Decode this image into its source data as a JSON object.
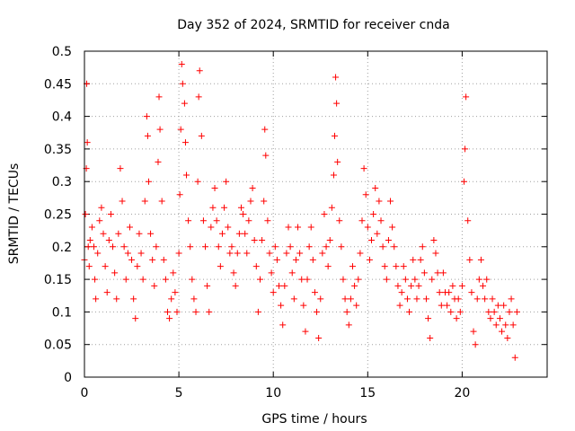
{
  "chart_data": {
    "type": "scatter",
    "title": "Day 352 of 2024, SRMTID for receiver cnda",
    "xlabel": "GPS time / hours",
    "ylabel": "SRMTID / TECUs",
    "xlim": [
      0,
      24.5
    ],
    "ylim": [
      0,
      0.5
    ],
    "xticks": [
      0,
      5,
      10,
      15,
      20
    ],
    "yticks": [
      0,
      0.05,
      0.1,
      0.15,
      0.2,
      0.25,
      0.3,
      0.35,
      0.4,
      0.45,
      0.5
    ],
    "xtick_labels": [
      "0",
      "5",
      "10",
      "15",
      "20"
    ],
    "ytick_labels": [
      "0",
      "0.05",
      "0.1",
      "0.15",
      "0.2",
      "0.25",
      "0.3",
      "0.35",
      "0.4",
      "0.45",
      "0.5"
    ],
    "grid": true,
    "marker": "+",
    "series": [
      {
        "name": "SRMTID",
        "color": "#ff0000",
        "points": [
          [
            0.0,
            0.18
          ],
          [
            0.05,
            0.25
          ],
          [
            0.1,
            0.32
          ],
          [
            0.12,
            0.45
          ],
          [
            0.15,
            0.36
          ],
          [
            0.2,
            0.2
          ],
          [
            0.25,
            0.17
          ],
          [
            0.3,
            0.21
          ],
          [
            0.4,
            0.23
          ],
          [
            0.5,
            0.2
          ],
          [
            0.55,
            0.15
          ],
          [
            0.6,
            0.12
          ],
          [
            0.7,
            0.19
          ],
          [
            0.8,
            0.24
          ],
          [
            0.9,
            0.26
          ],
          [
            1.0,
            0.22
          ],
          [
            1.1,
            0.17
          ],
          [
            1.2,
            0.13
          ],
          [
            1.3,
            0.21
          ],
          [
            1.4,
            0.25
          ],
          [
            1.5,
            0.2
          ],
          [
            1.6,
            0.16
          ],
          [
            1.7,
            0.12
          ],
          [
            1.8,
            0.22
          ],
          [
            1.9,
            0.32
          ],
          [
            2.0,
            0.27
          ],
          [
            2.1,
            0.2
          ],
          [
            2.2,
            0.15
          ],
          [
            2.3,
            0.19
          ],
          [
            2.4,
            0.23
          ],
          [
            2.5,
            0.18
          ],
          [
            2.6,
            0.12
          ],
          [
            2.7,
            0.09
          ],
          [
            2.8,
            0.17
          ],
          [
            2.9,
            0.22
          ],
          [
            3.0,
            0.19
          ],
          [
            3.1,
            0.15
          ],
          [
            3.2,
            0.27
          ],
          [
            3.3,
            0.4
          ],
          [
            3.35,
            0.37
          ],
          [
            3.4,
            0.3
          ],
          [
            3.5,
            0.22
          ],
          [
            3.6,
            0.18
          ],
          [
            3.7,
            0.14
          ],
          [
            3.8,
            0.2
          ],
          [
            3.9,
            0.33
          ],
          [
            3.95,
            0.43
          ],
          [
            4.0,
            0.38
          ],
          [
            4.1,
            0.27
          ],
          [
            4.2,
            0.18
          ],
          [
            4.3,
            0.15
          ],
          [
            4.4,
            0.1
          ],
          [
            4.5,
            0.09
          ],
          [
            4.6,
            0.12
          ],
          [
            4.7,
            0.16
          ],
          [
            4.8,
            0.13
          ],
          [
            4.9,
            0.1
          ],
          [
            5.0,
            0.19
          ],
          [
            5.05,
            0.28
          ],
          [
            5.1,
            0.38
          ],
          [
            5.15,
            0.48
          ],
          [
            5.2,
            0.45
          ],
          [
            5.3,
            0.42
          ],
          [
            5.35,
            0.36
          ],
          [
            5.4,
            0.31
          ],
          [
            5.5,
            0.24
          ],
          [
            5.6,
            0.2
          ],
          [
            5.7,
            0.15
          ],
          [
            5.8,
            0.12
          ],
          [
            5.9,
            0.1
          ],
          [
            6.0,
            0.3
          ],
          [
            6.05,
            0.43
          ],
          [
            6.1,
            0.47
          ],
          [
            6.2,
            0.37
          ],
          [
            6.3,
            0.24
          ],
          [
            6.4,
            0.2
          ],
          [
            6.5,
            0.14
          ],
          [
            6.6,
            0.1
          ],
          [
            6.7,
            0.23
          ],
          [
            6.8,
            0.26
          ],
          [
            6.9,
            0.29
          ],
          [
            7.0,
            0.24
          ],
          [
            7.1,
            0.2
          ],
          [
            7.2,
            0.17
          ],
          [
            7.3,
            0.22
          ],
          [
            7.4,
            0.26
          ],
          [
            7.5,
            0.3
          ],
          [
            7.6,
            0.23
          ],
          [
            7.7,
            0.19
          ],
          [
            7.8,
            0.2
          ],
          [
            7.9,
            0.16
          ],
          [
            8.0,
            0.14
          ],
          [
            8.1,
            0.19
          ],
          [
            8.2,
            0.22
          ],
          [
            8.3,
            0.26
          ],
          [
            8.4,
            0.25
          ],
          [
            8.5,
            0.22
          ],
          [
            8.6,
            0.19
          ],
          [
            8.7,
            0.24
          ],
          [
            8.8,
            0.27
          ],
          [
            8.9,
            0.29
          ],
          [
            9.0,
            0.21
          ],
          [
            9.1,
            0.17
          ],
          [
            9.2,
            0.1
          ],
          [
            9.3,
            0.15
          ],
          [
            9.4,
            0.21
          ],
          [
            9.5,
            0.27
          ],
          [
            9.55,
            0.38
          ],
          [
            9.6,
            0.34
          ],
          [
            9.7,
            0.24
          ],
          [
            9.8,
            0.19
          ],
          [
            9.9,
            0.16
          ],
          [
            10.0,
            0.13
          ],
          [
            10.1,
            0.2
          ],
          [
            10.2,
            0.18
          ],
          [
            10.3,
            0.14
          ],
          [
            10.4,
            0.11
          ],
          [
            10.5,
            0.08
          ],
          [
            10.6,
            0.14
          ],
          [
            10.7,
            0.19
          ],
          [
            10.8,
            0.23
          ],
          [
            10.9,
            0.2
          ],
          [
            11.0,
            0.16
          ],
          [
            11.1,
            0.12
          ],
          [
            11.2,
            0.18
          ],
          [
            11.3,
            0.23
          ],
          [
            11.4,
            0.19
          ],
          [
            11.5,
            0.15
          ],
          [
            11.6,
            0.11
          ],
          [
            11.7,
            0.07
          ],
          [
            11.8,
            0.15
          ],
          [
            11.9,
            0.2
          ],
          [
            12.0,
            0.23
          ],
          [
            12.1,
            0.18
          ],
          [
            12.2,
            0.13
          ],
          [
            12.3,
            0.1
          ],
          [
            12.4,
            0.06
          ],
          [
            12.5,
            0.12
          ],
          [
            12.6,
            0.19
          ],
          [
            12.7,
            0.25
          ],
          [
            12.8,
            0.2
          ],
          [
            12.9,
            0.17
          ],
          [
            13.0,
            0.21
          ],
          [
            13.1,
            0.26
          ],
          [
            13.2,
            0.31
          ],
          [
            13.25,
            0.37
          ],
          [
            13.3,
            0.46
          ],
          [
            13.35,
            0.42
          ],
          [
            13.4,
            0.33
          ],
          [
            13.5,
            0.24
          ],
          [
            13.6,
            0.2
          ],
          [
            13.7,
            0.15
          ],
          [
            13.8,
            0.12
          ],
          [
            13.9,
            0.1
          ],
          [
            14.0,
            0.08
          ],
          [
            14.1,
            0.12
          ],
          [
            14.2,
            0.17
          ],
          [
            14.3,
            0.14
          ],
          [
            14.4,
            0.11
          ],
          [
            14.5,
            0.15
          ],
          [
            14.6,
            0.19
          ],
          [
            14.7,
            0.24
          ],
          [
            14.8,
            0.32
          ],
          [
            14.9,
            0.28
          ],
          [
            15.0,
            0.23
          ],
          [
            15.1,
            0.18
          ],
          [
            15.2,
            0.21
          ],
          [
            15.3,
            0.25
          ],
          [
            15.4,
            0.29
          ],
          [
            15.5,
            0.22
          ],
          [
            15.6,
            0.27
          ],
          [
            15.7,
            0.24
          ],
          [
            15.8,
            0.2
          ],
          [
            15.9,
            0.17
          ],
          [
            16.0,
            0.15
          ],
          [
            16.1,
            0.21
          ],
          [
            16.2,
            0.27
          ],
          [
            16.3,
            0.23
          ],
          [
            16.4,
            0.2
          ],
          [
            16.5,
            0.17
          ],
          [
            16.6,
            0.14
          ],
          [
            16.7,
            0.11
          ],
          [
            16.8,
            0.13
          ],
          [
            16.9,
            0.17
          ],
          [
            17.0,
            0.15
          ],
          [
            17.1,
            0.12
          ],
          [
            17.2,
            0.1
          ],
          [
            17.3,
            0.14
          ],
          [
            17.4,
            0.18
          ],
          [
            17.5,
            0.15
          ],
          [
            17.6,
            0.12
          ],
          [
            17.7,
            0.14
          ],
          [
            17.8,
            0.18
          ],
          [
            17.9,
            0.2
          ],
          [
            18.0,
            0.16
          ],
          [
            18.1,
            0.12
          ],
          [
            18.2,
            0.09
          ],
          [
            18.3,
            0.06
          ],
          [
            18.4,
            0.15
          ],
          [
            18.5,
            0.21
          ],
          [
            18.6,
            0.19
          ],
          [
            18.7,
            0.16
          ],
          [
            18.8,
            0.13
          ],
          [
            18.9,
            0.11
          ],
          [
            19.0,
            0.16
          ],
          [
            19.1,
            0.13
          ],
          [
            19.2,
            0.11
          ],
          [
            19.3,
            0.13
          ],
          [
            19.4,
            0.1
          ],
          [
            19.5,
            0.14
          ],
          [
            19.6,
            0.12
          ],
          [
            19.7,
            0.09
          ],
          [
            19.8,
            0.12
          ],
          [
            19.9,
            0.1
          ],
          [
            20.0,
            0.14
          ],
          [
            20.1,
            0.3
          ],
          [
            20.15,
            0.35
          ],
          [
            20.2,
            0.43
          ],
          [
            20.3,
            0.24
          ],
          [
            20.4,
            0.18
          ],
          [
            20.5,
            0.13
          ],
          [
            20.6,
            0.07
          ],
          [
            20.7,
            0.05
          ],
          [
            20.8,
            0.12
          ],
          [
            20.9,
            0.15
          ],
          [
            21.0,
            0.18
          ],
          [
            21.1,
            0.14
          ],
          [
            21.2,
            0.12
          ],
          [
            21.3,
            0.15
          ],
          [
            21.4,
            0.1
          ],
          [
            21.5,
            0.09
          ],
          [
            21.6,
            0.12
          ],
          [
            21.7,
            0.1
          ],
          [
            21.8,
            0.08
          ],
          [
            21.9,
            0.11
          ],
          [
            22.0,
            0.09
          ],
          [
            22.1,
            0.07
          ],
          [
            22.2,
            0.11
          ],
          [
            22.3,
            0.08
          ],
          [
            22.4,
            0.06
          ],
          [
            22.5,
            0.1
          ],
          [
            22.6,
            0.12
          ],
          [
            22.7,
            0.08
          ],
          [
            22.8,
            0.03
          ],
          [
            22.9,
            0.1
          ]
        ]
      }
    ]
  }
}
